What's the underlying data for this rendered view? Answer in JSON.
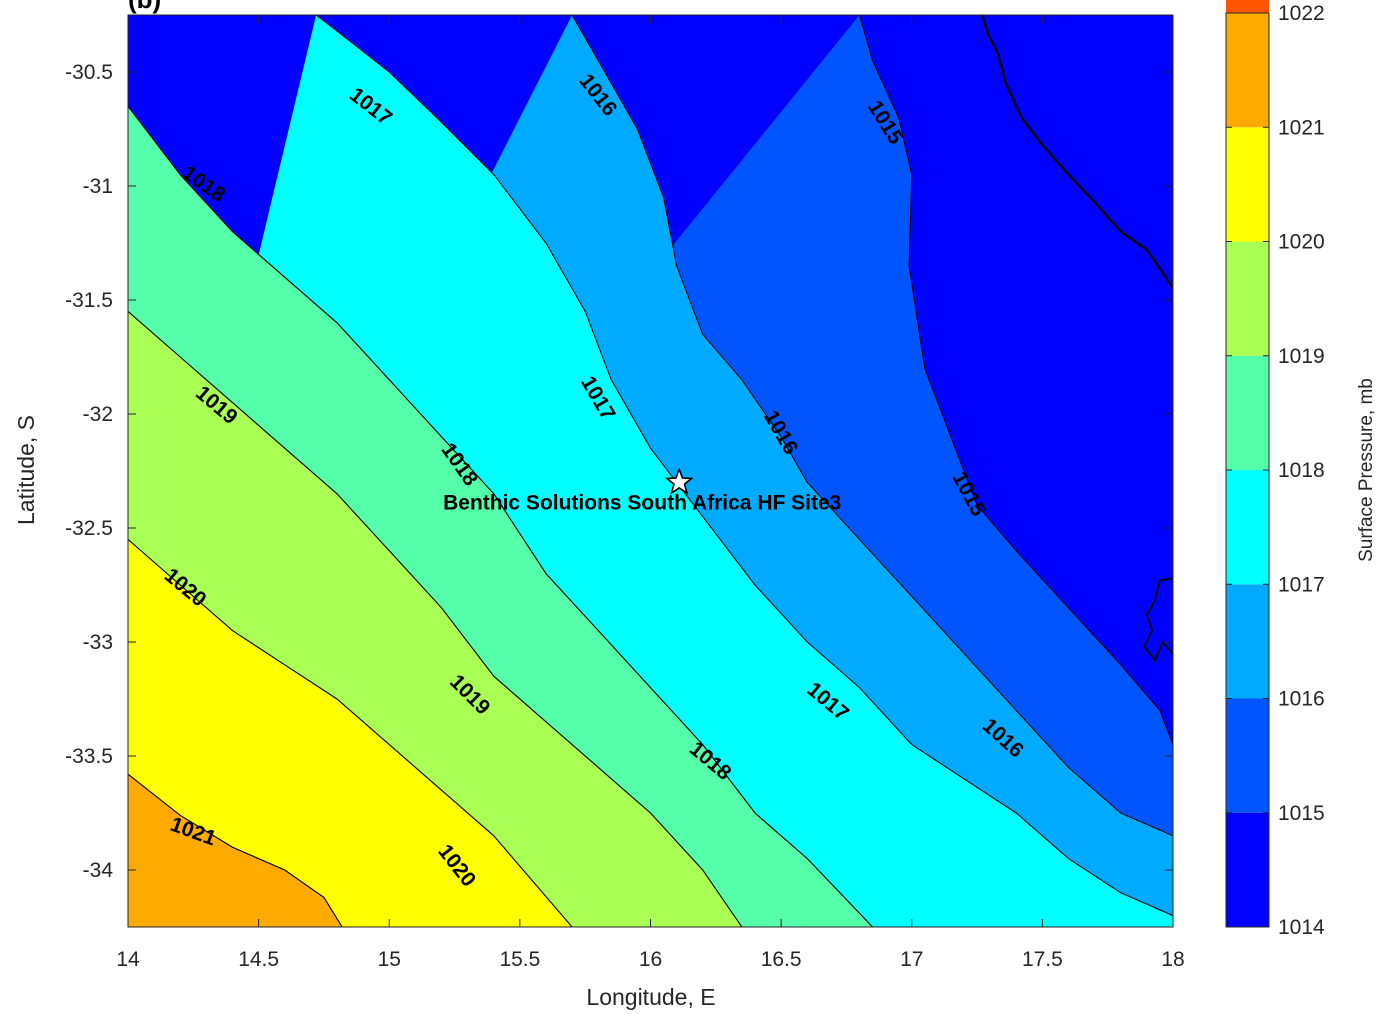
{
  "panel_label": "(b)",
  "chart_data": {
    "type": "contour",
    "xlabel": "Longitude, E",
    "ylabel": "Latitude, S",
    "xlim": [
      14,
      18
    ],
    "ylim": [
      -34.25,
      -30.25
    ],
    "xticks": [
      "14",
      "14.5",
      "15",
      "15.5",
      "16",
      "16.5",
      "17",
      "17.5",
      "18"
    ],
    "yticks": [
      "-30.5",
      "-31",
      "-31.5",
      "-32",
      "-32.5",
      "-33",
      "-33.5",
      "-34"
    ],
    "colorbar": {
      "label": "Surface Pressure, mb",
      "range": [
        1014,
        1022
      ],
      "ticks": [
        "1014",
        "1015",
        "1016",
        "1017",
        "1018",
        "1019",
        "1020",
        "1021",
        "1022"
      ],
      "colors": [
        "#0000ff",
        "#0055ff",
        "#00aaff",
        "#00ffff",
        "#55ffaa",
        "#aaff55",
        "#ffff00",
        "#ffaa00",
        "#ff5500"
      ]
    },
    "contours": [
      {
        "level": 1021,
        "points": [
          [
            14.0,
            -33.58
          ],
          [
            14.2,
            -33.76
          ],
          [
            14.4,
            -33.9
          ],
          [
            14.6,
            -34.0
          ],
          [
            14.75,
            -34.12
          ],
          [
            14.82,
            -34.25
          ]
        ]
      },
      {
        "level": 1020,
        "points": [
          [
            14.0,
            -32.55
          ],
          [
            14.2,
            -32.75
          ],
          [
            14.4,
            -32.95
          ],
          [
            14.6,
            -33.1
          ],
          [
            14.8,
            -33.25
          ],
          [
            15.0,
            -33.45
          ],
          [
            15.2,
            -33.65
          ],
          [
            15.4,
            -33.85
          ],
          [
            15.55,
            -34.05
          ],
          [
            15.7,
            -34.25
          ]
        ]
      },
      {
        "level": 1019,
        "points": [
          [
            14.0,
            -31.55
          ],
          [
            14.2,
            -31.75
          ],
          [
            14.4,
            -31.95
          ],
          [
            14.6,
            -32.15
          ],
          [
            14.8,
            -32.35
          ],
          [
            15.0,
            -32.6
          ],
          [
            15.2,
            -32.85
          ],
          [
            15.4,
            -33.15
          ],
          [
            15.6,
            -33.35
          ],
          [
            15.8,
            -33.55
          ],
          [
            16.0,
            -33.75
          ],
          [
            16.2,
            -34.0
          ],
          [
            16.35,
            -34.25
          ]
        ]
      },
      {
        "level": 1018,
        "points": [
          [
            14.0,
            -30.65
          ],
          [
            14.2,
            -30.95
          ],
          [
            14.4,
            -31.2
          ],
          [
            14.6,
            -31.4
          ],
          [
            14.8,
            -31.6
          ],
          [
            15.0,
            -31.85
          ],
          [
            15.2,
            -32.1
          ],
          [
            15.4,
            -32.35
          ],
          [
            15.6,
            -32.7
          ],
          [
            15.8,
            -32.95
          ],
          [
            16.0,
            -33.2
          ],
          [
            16.2,
            -33.45
          ],
          [
            16.4,
            -33.75
          ],
          [
            16.6,
            -33.95
          ],
          [
            16.85,
            -34.25
          ]
        ]
      },
      {
        "level": 1017,
        "points": [
          [
            14.72,
            -30.25
          ],
          [
            14.8,
            -30.32
          ],
          [
            15.0,
            -30.5
          ],
          [
            15.2,
            -30.72
          ],
          [
            15.4,
            -30.95
          ],
          [
            15.6,
            -31.25
          ],
          [
            15.75,
            -31.55
          ],
          [
            15.85,
            -31.85
          ],
          [
            16.0,
            -32.15
          ],
          [
            16.2,
            -32.45
          ],
          [
            16.4,
            -32.75
          ],
          [
            16.6,
            -33.0
          ],
          [
            16.8,
            -33.2
          ],
          [
            17.0,
            -33.45
          ],
          [
            17.2,
            -33.6
          ],
          [
            17.4,
            -33.75
          ],
          [
            17.6,
            -33.95
          ],
          [
            17.8,
            -34.1
          ],
          [
            18.0,
            -34.2
          ]
        ]
      },
      {
        "level": 1016,
        "points": [
          [
            15.7,
            -30.25
          ],
          [
            15.75,
            -30.35
          ],
          [
            15.85,
            -30.55
          ],
          [
            15.95,
            -30.75
          ],
          [
            16.05,
            -31.05
          ],
          [
            16.1,
            -31.35
          ],
          [
            16.2,
            -31.65
          ],
          [
            16.35,
            -31.85
          ],
          [
            16.5,
            -32.1
          ],
          [
            16.6,
            -32.3
          ],
          [
            16.8,
            -32.55
          ],
          [
            17.0,
            -32.8
          ],
          [
            17.2,
            -33.05
          ],
          [
            17.4,
            -33.3
          ],
          [
            17.6,
            -33.55
          ],
          [
            17.8,
            -33.75
          ],
          [
            18.0,
            -33.85
          ]
        ]
      },
      {
        "level": 1015,
        "points": [
          [
            16.8,
            -30.25
          ],
          [
            16.85,
            -30.45
          ],
          [
            16.95,
            -30.7
          ],
          [
            17.0,
            -30.95
          ],
          [
            16.99,
            -31.35
          ],
          [
            17.05,
            -31.8
          ],
          [
            17.15,
            -32.1
          ],
          [
            17.25,
            -32.4
          ],
          [
            17.4,
            -32.6
          ],
          [
            17.6,
            -32.85
          ],
          [
            17.8,
            -33.1
          ],
          [
            17.95,
            -33.3
          ],
          [
            18.0,
            -33.45
          ]
        ]
      }
    ],
    "contour_labels": [
      {
        "text": "1017",
        "lon": 14.93,
        "lat": -30.65,
        "angle": 38
      },
      {
        "text": "1016",
        "lon": 15.8,
        "lat": -30.6,
        "angle": 52
      },
      {
        "text": "1015",
        "lon": 16.9,
        "lat": -30.72,
        "angle": 58
      },
      {
        "text": "1018",
        "lon": 14.29,
        "lat": -30.99,
        "angle": 35
      },
      {
        "text": "1019",
        "lon": 14.34,
        "lat": -31.96,
        "angle": 40
      },
      {
        "text": "1017",
        "lon": 15.8,
        "lat": -31.93,
        "angle": 60
      },
      {
        "text": "1016",
        "lon": 16.5,
        "lat": -32.08,
        "angle": 60
      },
      {
        "text": "1018",
        "lon": 15.27,
        "lat": -32.22,
        "angle": 55
      },
      {
        "text": "1015",
        "lon": 17.22,
        "lat": -32.35,
        "angle": 62
      },
      {
        "text": "1020",
        "lon": 14.22,
        "lat": -32.76,
        "angle": 40
      },
      {
        "text": "1019",
        "lon": 15.31,
        "lat": -33.23,
        "angle": 45
      },
      {
        "text": "1017",
        "lon": 16.68,
        "lat": -33.26,
        "angle": 40
      },
      {
        "text": "1016",
        "lon": 17.35,
        "lat": -33.42,
        "angle": 42
      },
      {
        "text": "1018",
        "lon": 16.23,
        "lat": -33.52,
        "angle": 40
      },
      {
        "text": "1021",
        "lon": 14.25,
        "lat": -33.83,
        "angle": 20
      },
      {
        "text": "1020",
        "lon": 15.26,
        "lat": -33.98,
        "angle": 52
      }
    ],
    "site": {
      "name": "Benthic Solutions South Africa HF Site3",
      "lon": 16.11,
      "lat": -32.3
    }
  }
}
